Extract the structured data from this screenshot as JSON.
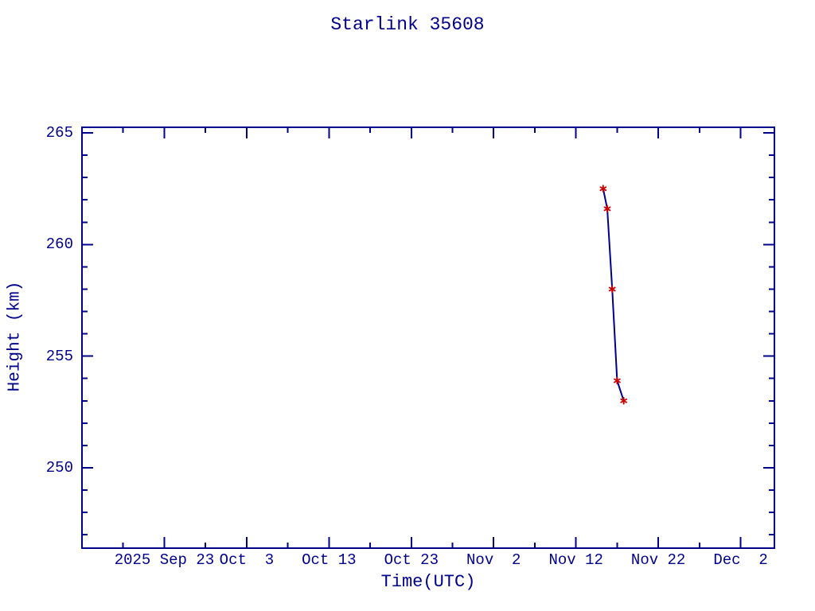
{
  "page": {
    "title": "Starlink 35608"
  },
  "colors": {
    "foreground": "#00008b",
    "line": "#00008b",
    "marker": "#cc0000",
    "background": "#ffffff"
  },
  "chart_data": {
    "type": "line",
    "title": "Starlink 35608",
    "xlabel": "Time(UTC)",
    "ylabel": "Height (km)",
    "grid": false,
    "legend": false,
    "x_axis": {
      "unit": "days since 2025 Sep 13 (UTC)",
      "xlim": [
        0,
        84.1
      ],
      "major_ticks": [
        {
          "day": 10,
          "label": "2025 Sep 23"
        },
        {
          "day": 20,
          "label": "Oct  3"
        },
        {
          "day": 30,
          "label": "Oct 13"
        },
        {
          "day": 40,
          "label": "Oct 23"
        },
        {
          "day": 50,
          "label": "Nov  2"
        },
        {
          "day": 60,
          "label": "Nov 12"
        },
        {
          "day": 70,
          "label": "Nov 22"
        },
        {
          "day": 80,
          "label": "Dec  2"
        }
      ],
      "minor_tick_step_days": 5
    },
    "y_axis": {
      "unit": "km",
      "ylim": [
        246.4,
        265.25
      ],
      "major_ticks": [
        {
          "km": 250,
          "label": "250"
        },
        {
          "km": 255,
          "label": "255"
        },
        {
          "km": 260,
          "label": "260"
        },
        {
          "km": 265,
          "label": "265"
        }
      ],
      "minor_tick_step_km": 1
    },
    "series": [
      {
        "name": "orbital height",
        "line_color": "#00008b",
        "marker": "asterisk",
        "marker_color": "#cc0000",
        "points": [
          {
            "day": 63.3,
            "date": "2025 Nov 15.3",
            "height_km": 262.5
          },
          {
            "day": 63.8,
            "date": "2025 Nov 15.8",
            "height_km": 261.6
          },
          {
            "day": 64.4,
            "date": "2025 Nov 16.4",
            "height_km": 258.0
          },
          {
            "day": 65.0,
            "date": "2025 Nov 17.0",
            "height_km": 253.9
          },
          {
            "day": 65.8,
            "date": "2025 Nov 17.8",
            "height_km": 253.0
          }
        ]
      }
    ]
  }
}
